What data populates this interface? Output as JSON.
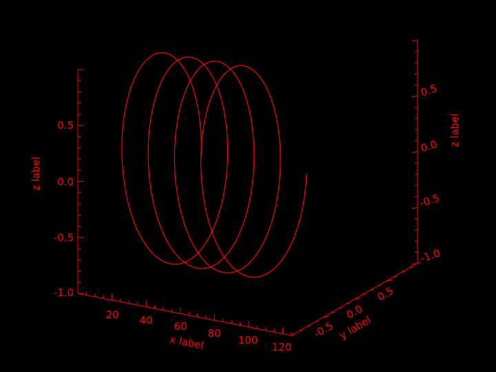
{
  "chart_data": {
    "type": "line",
    "projection": "3d",
    "title": "",
    "xlabel": "x label",
    "ylabel": "y label",
    "zlabel": "z label",
    "x_ticks": [
      "20",
      "40",
      "60",
      "80",
      "100",
      "120"
    ],
    "y_ticks": [
      "-0.5",
      "0.0",
      "0.5"
    ],
    "z_ticks_left": [
      "0.5",
      "0.0",
      "-0.5",
      "-1.0"
    ],
    "z_ticks_right": [
      "0.5",
      "0.0",
      "-0.5",
      "-1.0"
    ],
    "xlim": [
      0,
      125
    ],
    "ylim": [
      -1,
      1
    ],
    "zlim": [
      -1,
      1
    ],
    "grid": false,
    "series": [
      {
        "x_range": [
          0,
          120
        ],
        "turns": 4,
        "y": "cos(t)",
        "z": "sin(t)"
      }
    ],
    "colors": {
      "foreground": "#ff0000",
      "background": "#000000"
    }
  }
}
